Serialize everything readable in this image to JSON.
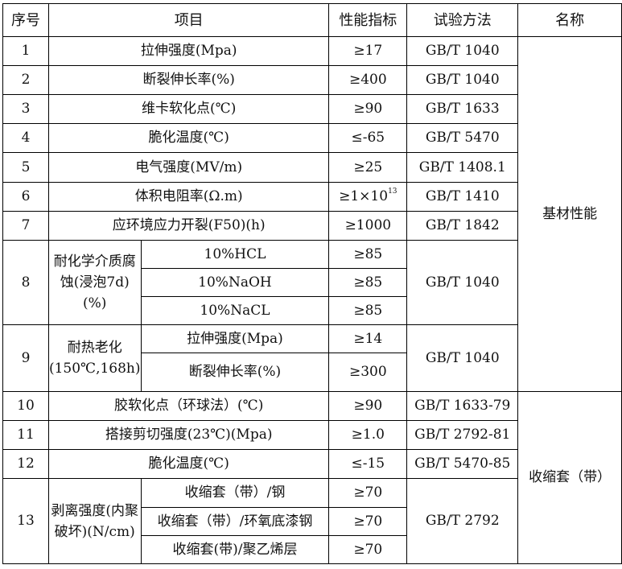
{
  "header": {
    "no": "序号",
    "item": "项目",
    "indicator": "性能指标",
    "method": "试验方法",
    "name": "名称"
  },
  "groups": {
    "base": "基材性能",
    "sleeve": "收缩套（带）"
  },
  "rows": [
    {
      "no": "1",
      "item": "拉伸强度(Mpa)",
      "value": "≥17",
      "method": "GB/T 1040"
    },
    {
      "no": "2",
      "item": "断裂伸长率(%)",
      "value": "≥400",
      "method": "GB/T 1040"
    },
    {
      "no": "3",
      "item": "维卡软化点(℃)",
      "value": "≥90",
      "method": "GB/T 1633"
    },
    {
      "no": "4",
      "item": "脆化温度(℃)",
      "value": "≤-65",
      "method": "GB/T 5470"
    },
    {
      "no": "5",
      "item": "电气强度(MV/m)",
      "value": "≥25",
      "method": "GB/T 1408.1"
    },
    {
      "no": "6",
      "item": "体积电阻率(Ω.m)",
      "value": "≥1×10",
      "value_sup": "13",
      "method": "GB/T 1410"
    },
    {
      "no": "7",
      "item": "应环境应力开裂(F50)(h)",
      "value": "≥1000",
      "method": "GB/T 1842"
    },
    {
      "no": "8",
      "item": "耐化学介质腐蚀(浸泡7d)(%)",
      "method": "GB/T 1040",
      "sub": [
        {
          "item": "10%HCL",
          "value": "≥85"
        },
        {
          "item": "10%NaOH",
          "value": "≥85"
        },
        {
          "item": "10%NaCL",
          "value": "≥85"
        }
      ]
    },
    {
      "no": "9",
      "item": "耐热老化(150℃,168h)",
      "method": "GB/T 1040",
      "sub": [
        {
          "item": "拉伸强度(Mpa)",
          "value": "≥14"
        },
        {
          "item": "断裂伸长率(%)",
          "value": "≥300"
        }
      ]
    },
    {
      "no": "10",
      "item": "胶软化点（环球法）(℃)",
      "value": "≥90",
      "method": "GB/T 1633-79"
    },
    {
      "no": "11",
      "item": "搭接剪切强度(23℃)(Mpa)",
      "value": "≥1.0",
      "method": "GB/T 2792-81"
    },
    {
      "no": "12",
      "item": "脆化温度(℃)",
      "value": "≤-15",
      "method": "GB/T 5470-85"
    },
    {
      "no": "13",
      "item": "剥离强度(内聚破坏)(N/cm)",
      "method": "GB/T 2792",
      "sub": [
        {
          "item": "收缩套（带）/钢",
          "value": "≥70"
        },
        {
          "item": "收缩套（带）/环氧底漆钢",
          "value": "≥70"
        },
        {
          "item": "收缩套(带)/聚乙烯层",
          "value": "≥70"
        }
      ]
    }
  ]
}
